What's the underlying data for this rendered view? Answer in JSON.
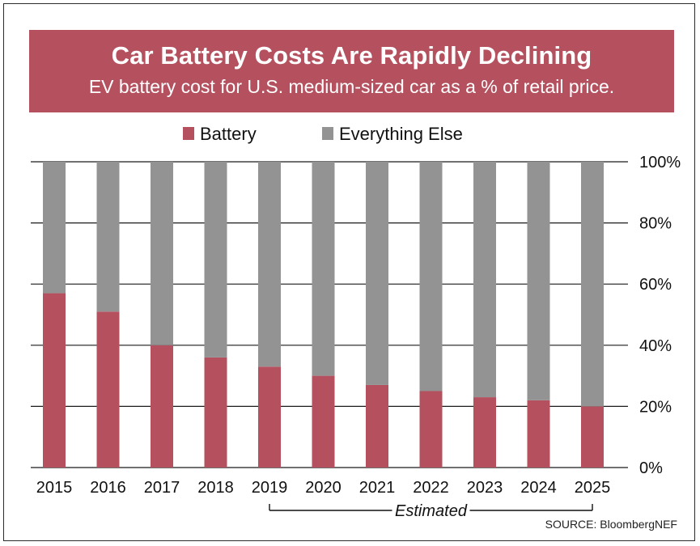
{
  "title": "Car Battery Costs Are Rapidly Declining",
  "subtitle": "EV battery cost for U.S. medium-sized car as a % of retail price.",
  "estimated_label": "Estimated",
  "source": "SOURCE: BloombergNEF",
  "colors": {
    "battery": "#b5515f",
    "everything_else": "#939393",
    "banner": "#b5515f"
  },
  "chart_data": {
    "type": "bar",
    "stacked": true,
    "categories": [
      "2015",
      "2016",
      "2017",
      "2018",
      "2019",
      "2020",
      "2021",
      "2022",
      "2023",
      "2024",
      "2025"
    ],
    "series": [
      {
        "name": "Battery",
        "values": [
          57,
          51,
          40,
          36,
          33,
          30,
          27,
          25,
          23,
          22,
          20
        ]
      },
      {
        "name": "Everything Else",
        "values": [
          43,
          49,
          60,
          64,
          67,
          70,
          73,
          75,
          77,
          78,
          80
        ]
      }
    ],
    "ylim": [
      0,
      100
    ],
    "yticks": [
      "0%",
      "20%",
      "40%",
      "60%",
      "80%",
      "100%"
    ],
    "grid": true,
    "legend_position": "top",
    "annotation": {
      "text": "Estimated",
      "from": "2019",
      "to": "2025"
    }
  }
}
